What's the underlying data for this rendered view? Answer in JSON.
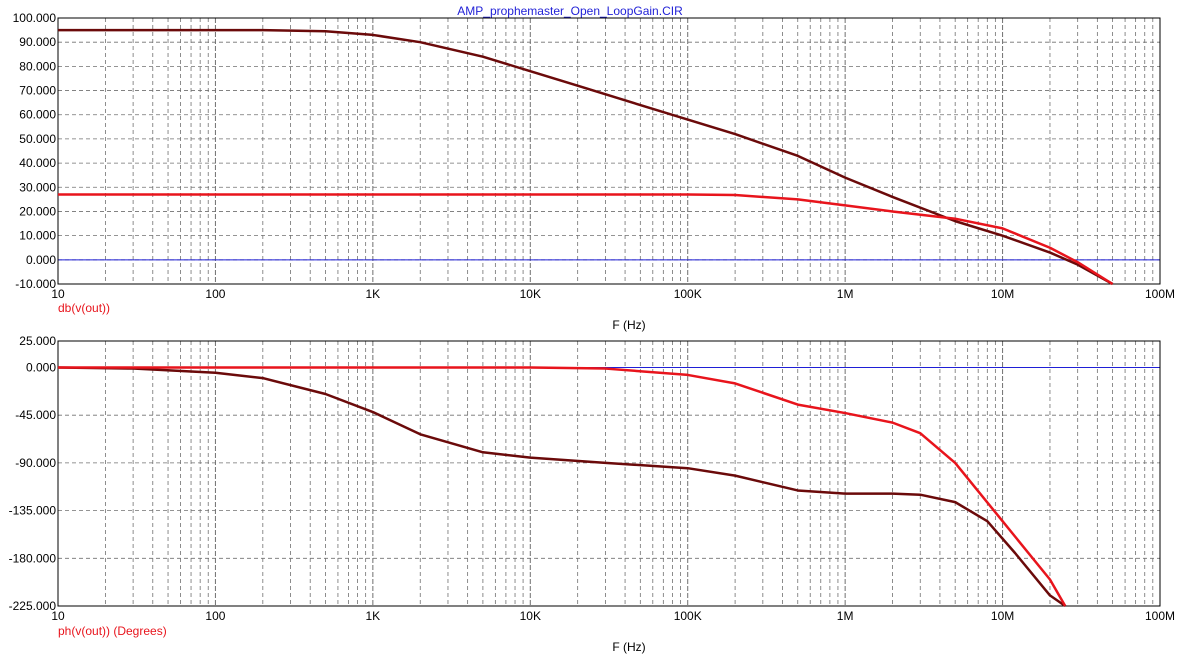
{
  "title": "AMP_prophemaster_Open_LoopGain.CIR",
  "colors": {
    "axis_zero": "#1f1fd6",
    "trace_dark": "#6b0a0a",
    "trace_red": "#e8141c",
    "grid": "#707070",
    "title": "#1f1fd6",
    "label": "#e8141c"
  },
  "chart_data": [
    {
      "type": "line",
      "xscale": "log",
      "xlim": [
        10,
        100000000
      ],
      "ylim": [
        -10,
        100
      ],
      "xlabel": "F (Hz)",
      "ylabel": "db(v(out))",
      "x_tick_labels": [
        "10",
        "100",
        "1K",
        "10K",
        "100K",
        "1M",
        "10M",
        "100M"
      ],
      "y_tick_labels": [
        "100.000",
        "90.000",
        "80.000",
        "70.000",
        "60.000",
        "50.000",
        "40.000",
        "30.000",
        "20.000",
        "10.000",
        "0.000",
        "-10.000"
      ],
      "grid": true,
      "series": [
        {
          "color": "#6b0a0a",
          "x": [
            10,
            100,
            200,
            500,
            1000,
            2000,
            5000,
            10000,
            20000,
            50000,
            100000,
            200000,
            500000,
            1000000,
            2000000,
            5000000,
            10000000,
            20000000,
            30000000,
            50000000
          ],
          "y": [
            95,
            95,
            95,
            94.5,
            93,
            90,
            84,
            78,
            72,
            64,
            58,
            52,
            43,
            34,
            26,
            16,
            10,
            3,
            -2,
            -10
          ]
        },
        {
          "color": "#e8141c",
          "x": [
            10,
            100,
            1000,
            10000,
            100000,
            200000,
            500000,
            1000000,
            2000000,
            5000000,
            10000000,
            20000000,
            30000000,
            50000000
          ],
          "y": [
            27,
            27,
            27,
            27,
            27,
            26.8,
            25,
            22.5,
            20,
            17,
            13,
            5,
            -1,
            -10
          ]
        }
      ]
    },
    {
      "type": "line",
      "xscale": "log",
      "xlim": [
        10,
        100000000
      ],
      "ylim": [
        -225,
        25
      ],
      "xlabel": "F (Hz)",
      "ylabel": "ph(v(out)) (Degrees)",
      "x_tick_labels": [
        "10",
        "100",
        "1K",
        "10K",
        "100K",
        "1M",
        "10M",
        "100M"
      ],
      "y_tick_labels": [
        "25.000",
        "0.000",
        "-45.000",
        "-90.000",
        "-135.000",
        "-180.000",
        "-225.000"
      ],
      "grid": true,
      "series": [
        {
          "color": "#6b0a0a",
          "x": [
            10,
            30,
            100,
            200,
            500,
            1000,
            2000,
            5000,
            10000,
            30000,
            100000,
            200000,
            500000,
            1000000,
            2000000,
            3000000,
            5000000,
            8000000,
            12000000,
            20000000,
            25000000
          ],
          "y": [
            0,
            -1,
            -5,
            -10,
            -25,
            -42,
            -63,
            -80,
            -85,
            -90,
            -95,
            -102,
            -116,
            -119,
            -119,
            -120,
            -127,
            -145,
            -175,
            -215,
            -225
          ]
        },
        {
          "color": "#e8141c",
          "x": [
            10,
            1000,
            10000,
            30000,
            100000,
            200000,
            500000,
            1000000,
            2000000,
            3000000,
            5000000,
            10000000,
            20000000,
            25000000
          ],
          "y": [
            0,
            0,
            0,
            -1,
            -7,
            -15,
            -35,
            -43,
            -52,
            -62,
            -90,
            -145,
            -200,
            -225
          ]
        }
      ]
    }
  ]
}
